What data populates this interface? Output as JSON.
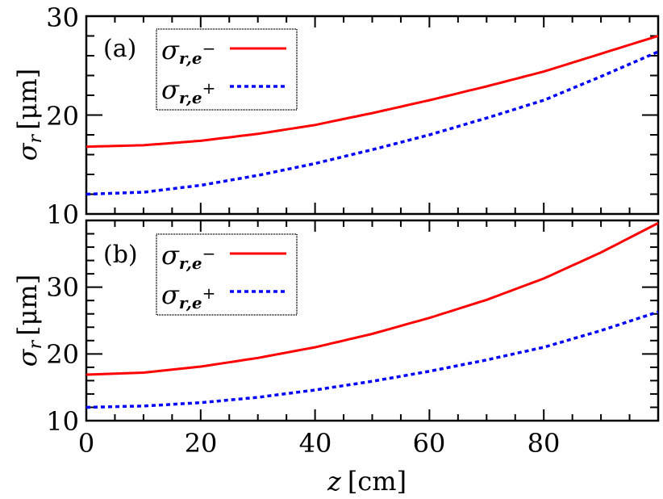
{
  "chart_data": [
    {
      "type": "line",
      "panel": "(a)",
      "xlabel": "z [cm]",
      "ylabel": "σ_r [μm]",
      "xlim": [
        0,
        100
      ],
      "ylim": [
        10,
        30
      ],
      "x_ticks": [
        0,
        20,
        40,
        60,
        80
      ],
      "y_ticks": [
        10,
        20,
        30
      ],
      "legend_position": "upper left",
      "x": [
        0,
        10,
        20,
        30,
        40,
        50,
        60,
        70,
        80,
        90,
        100
      ],
      "series": [
        {
          "name": "σ_{r,e−}",
          "color": "#ff0000",
          "style": "solid",
          "values": [
            16.8,
            16.95,
            17.4,
            18.1,
            19.0,
            20.2,
            21.5,
            22.9,
            24.4,
            26.2,
            28.0
          ]
        },
        {
          "name": "σ_{r,e+}",
          "color": "#0000ff",
          "style": "dotted",
          "values": [
            12.0,
            12.2,
            12.9,
            13.9,
            15.1,
            16.5,
            18.0,
            19.7,
            21.5,
            23.9,
            26.4
          ]
        }
      ]
    },
    {
      "type": "line",
      "panel": "(b)",
      "xlabel": "z [cm]",
      "ylabel": "σ_r [μm]",
      "xlim": [
        0,
        100
      ],
      "ylim": [
        10,
        40
      ],
      "x_ticks": [
        0,
        20,
        40,
        60,
        80
      ],
      "y_ticks": [
        10,
        20,
        30
      ],
      "legend_position": "upper left",
      "x": [
        0,
        10,
        20,
        30,
        40,
        50,
        60,
        70,
        80,
        90,
        100
      ],
      "series": [
        {
          "name": "σ_{r,e−}",
          "color": "#ff0000",
          "style": "solid",
          "values": [
            16.9,
            17.2,
            18.1,
            19.4,
            21.0,
            23.0,
            25.4,
            28.1,
            31.3,
            35.2,
            39.6
          ]
        },
        {
          "name": "σ_{r,e+}",
          "color": "#0000ff",
          "style": "dotted",
          "values": [
            12.0,
            12.2,
            12.7,
            13.5,
            14.6,
            15.9,
            17.4,
            19.1,
            21.0,
            23.5,
            26.3
          ]
        }
      ]
    }
  ],
  "figure": {
    "panel_a_label": "(a)",
    "panel_b_label": "(b)",
    "ylabel_sigma": "σ",
    "ylabel_sub": "r",
    "ylabel_unit": "[μm]",
    "xlabel_var": "z",
    "xlabel_unit": "[cm]",
    "legend_e_minus_main": "σ",
    "legend_e_minus_sub": "r,e",
    "legend_e_minus_sup": "−",
    "legend_e_plus_main": "σ",
    "legend_e_plus_sub": "r,e",
    "legend_e_plus_sup": "+",
    "a_ytick_30": "30",
    "a_ytick_20": "20",
    "a_ytick_10": "10",
    "b_ytick_30": "30",
    "b_ytick_20": "20",
    "b_ytick_10": "10",
    "xtick_0": "0",
    "xtick_20": "20",
    "xtick_40": "40",
    "xtick_60": "60",
    "xtick_80": "80",
    "color_e_minus": "#ff0000",
    "color_e_plus": "#0000ff"
  }
}
